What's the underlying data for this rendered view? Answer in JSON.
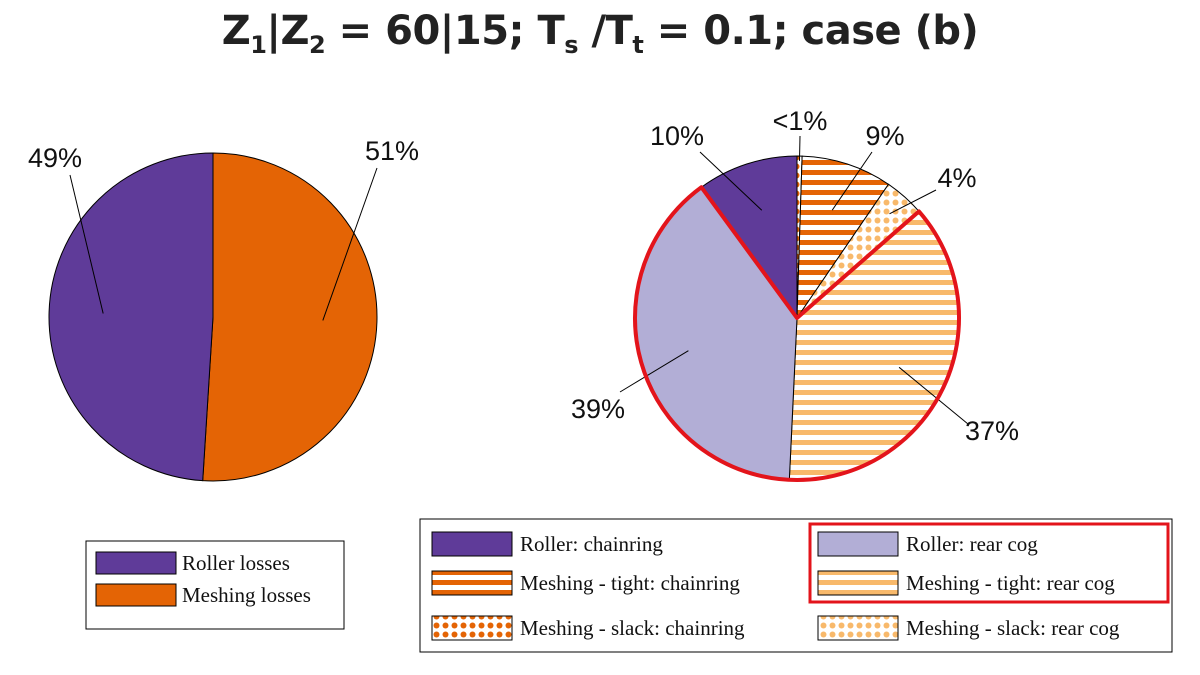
{
  "title": {
    "prefix": "Z",
    "sub1": "1",
    "pipe": "|Z",
    "sub2": "2",
    "mid": " = 60|15; T",
    "sub3": "s",
    "slash": " /T",
    "sub4": "t",
    "suffix": " = 0.1; case (b)"
  },
  "colors": {
    "roller_chainring": "#5f3b99",
    "roller_rear_cog": "#b2aed6",
    "meshing_chainring": "#e46405",
    "meshing_rear_cog": "#f8b96b",
    "highlight": "#e3141b"
  },
  "chart_data": [
    {
      "type": "pie",
      "series": [
        {
          "name": "Roller losses",
          "value": 49,
          "label": "49%",
          "color": "#5f3b99",
          "pattern": "solid"
        },
        {
          "name": "Meshing losses",
          "value": 51,
          "label": "51%",
          "color": "#e46405",
          "pattern": "solid"
        }
      ],
      "legend": {
        "placement": "bottom",
        "entries": [
          "Roller losses",
          "Meshing losses"
        ]
      }
    },
    {
      "type": "pie",
      "series": [
        {
          "name": "Meshing - slack: chainring",
          "value": 0.5,
          "label": "<1%",
          "color": "#e46405",
          "pattern": "dots"
        },
        {
          "name": "Meshing - tight: chainring",
          "value": 9,
          "label": "9%",
          "color": "#e46405",
          "pattern": "stripes"
        },
        {
          "name": "Meshing - slack: rear cog",
          "value": 4,
          "label": "4%",
          "color": "#f8b96b",
          "pattern": "dots"
        },
        {
          "name": "Meshing - tight: rear cog",
          "value": 37,
          "label": "37%",
          "color": "#f8b96b",
          "pattern": "stripes"
        },
        {
          "name": "Roller: rear cog",
          "value": 39,
          "label": "39%",
          "color": "#b2aed6",
          "pattern": "solid"
        },
        {
          "name": "Roller: chainring",
          "value": 10,
          "label": "10%",
          "color": "#5f3b99",
          "pattern": "solid"
        }
      ],
      "highlighted": [
        "Meshing - tight: rear cog",
        "Roller: rear cog"
      ],
      "legend": {
        "placement": "bottom",
        "entries": [
          "Roller: chainring",
          "Roller: rear cog",
          "Meshing - tight: chainring",
          "Meshing - tight: rear cog",
          "Meshing - slack: chainring",
          "Meshing - slack: rear cog"
        ]
      }
    }
  ]
}
